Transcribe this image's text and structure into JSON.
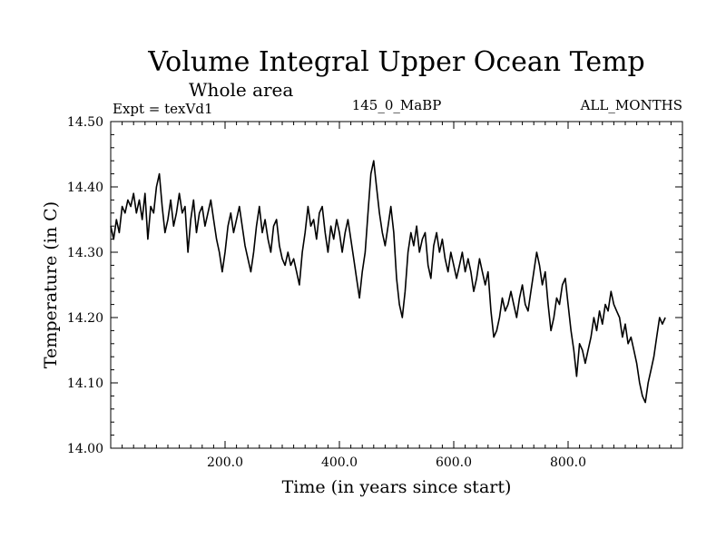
{
  "chart_data": {
    "type": "line",
    "title": "Volume Integral Upper Ocean Temp",
    "subtitle": "Whole area",
    "experiment": "Expt = texVd1",
    "run_label": "145_0_MaBP",
    "months_label": "ALL_MONTHS",
    "xlabel": "Time (in years since start)",
    "ylabel": "Temperature (in C)",
    "xlim": [
      0,
      1000
    ],
    "ylim": [
      14.0,
      14.5
    ],
    "xticks": [
      {
        "value": 200,
        "label": "200.0"
      },
      {
        "value": 400,
        "label": "400.0"
      },
      {
        "value": 600,
        "label": "600.0"
      },
      {
        "value": 800,
        "label": "800.0"
      }
    ],
    "yticks": [
      {
        "value": 14.0,
        "label": "14.00"
      },
      {
        "value": 14.1,
        "label": "14.10"
      },
      {
        "value": 14.2,
        "label": "14.20"
      },
      {
        "value": 14.3,
        "label": "14.30"
      },
      {
        "value": 14.4,
        "label": "14.40"
      },
      {
        "value": 14.5,
        "label": "14.50"
      }
    ],
    "grid": false,
    "series": [
      {
        "name": "Volume Integral Upper Ocean Temp",
        "color": "#000000",
        "points": [
          [
            0,
            14.34
          ],
          [
            5,
            14.32
          ],
          [
            10,
            14.35
          ],
          [
            15,
            14.33
          ],
          [
            20,
            14.37
          ],
          [
            25,
            14.36
          ],
          [
            30,
            14.38
          ],
          [
            35,
            14.37
          ],
          [
            40,
            14.39
          ],
          [
            45,
            14.36
          ],
          [
            50,
            14.38
          ],
          [
            55,
            14.35
          ],
          [
            60,
            14.39
          ],
          [
            65,
            14.32
          ],
          [
            70,
            14.37
          ],
          [
            75,
            14.36
          ],
          [
            80,
            14.4
          ],
          [
            85,
            14.42
          ],
          [
            90,
            14.37
          ],
          [
            95,
            14.33
          ],
          [
            100,
            14.35
          ],
          [
            105,
            14.38
          ],
          [
            110,
            14.34
          ],
          [
            115,
            14.36
          ],
          [
            120,
            14.39
          ],
          [
            125,
            14.36
          ],
          [
            130,
            14.37
          ],
          [
            135,
            14.3
          ],
          [
            140,
            14.35
          ],
          [
            145,
            14.38
          ],
          [
            150,
            14.33
          ],
          [
            155,
            14.36
          ],
          [
            160,
            14.37
          ],
          [
            165,
            14.34
          ],
          [
            170,
            14.36
          ],
          [
            175,
            14.38
          ],
          [
            180,
            14.35
          ],
          [
            185,
            14.32
          ],
          [
            190,
            14.3
          ],
          [
            195,
            14.27
          ],
          [
            200,
            14.3
          ],
          [
            205,
            14.34
          ],
          [
            210,
            14.36
          ],
          [
            215,
            14.33
          ],
          [
            220,
            14.35
          ],
          [
            225,
            14.37
          ],
          [
            230,
            14.34
          ],
          [
            235,
            14.31
          ],
          [
            240,
            14.29
          ],
          [
            245,
            14.27
          ],
          [
            250,
            14.3
          ],
          [
            255,
            14.34
          ],
          [
            260,
            14.37
          ],
          [
            265,
            14.33
          ],
          [
            270,
            14.35
          ],
          [
            275,
            14.32
          ],
          [
            280,
            14.3
          ],
          [
            285,
            14.34
          ],
          [
            290,
            14.35
          ],
          [
            295,
            14.31
          ],
          [
            300,
            14.29
          ],
          [
            305,
            14.28
          ],
          [
            310,
            14.3
          ],
          [
            315,
            14.28
          ],
          [
            320,
            14.29
          ],
          [
            325,
            14.27
          ],
          [
            330,
            14.25
          ],
          [
            335,
            14.3
          ],
          [
            340,
            14.33
          ],
          [
            345,
            14.37
          ],
          [
            350,
            14.34
          ],
          [
            355,
            14.35
          ],
          [
            360,
            14.32
          ],
          [
            365,
            14.36
          ],
          [
            370,
            14.37
          ],
          [
            375,
            14.33
          ],
          [
            380,
            14.3
          ],
          [
            385,
            14.34
          ],
          [
            390,
            14.32
          ],
          [
            395,
            14.35
          ],
          [
            400,
            14.33
          ],
          [
            405,
            14.3
          ],
          [
            410,
            14.33
          ],
          [
            415,
            14.35
          ],
          [
            420,
            14.32
          ],
          [
            425,
            14.29
          ],
          [
            430,
            14.26
          ],
          [
            435,
            14.23
          ],
          [
            440,
            14.27
          ],
          [
            445,
            14.3
          ],
          [
            450,
            14.36
          ],
          [
            455,
            14.42
          ],
          [
            460,
            14.44
          ],
          [
            465,
            14.4
          ],
          [
            470,
            14.36
          ],
          [
            475,
            14.33
          ],
          [
            480,
            14.31
          ],
          [
            485,
            14.34
          ],
          [
            490,
            14.37
          ],
          [
            495,
            14.33
          ],
          [
            500,
            14.26
          ],
          [
            505,
            14.22
          ],
          [
            510,
            14.2
          ],
          [
            515,
            14.24
          ],
          [
            520,
            14.3
          ],
          [
            525,
            14.33
          ],
          [
            530,
            14.31
          ],
          [
            535,
            14.34
          ],
          [
            540,
            14.3
          ],
          [
            545,
            14.32
          ],
          [
            550,
            14.33
          ],
          [
            555,
            14.28
          ],
          [
            560,
            14.26
          ],
          [
            565,
            14.31
          ],
          [
            570,
            14.33
          ],
          [
            575,
            14.3
          ],
          [
            580,
            14.32
          ],
          [
            585,
            14.29
          ],
          [
            590,
            14.27
          ],
          [
            595,
            14.3
          ],
          [
            600,
            14.28
          ],
          [
            605,
            14.26
          ],
          [
            610,
            14.28
          ],
          [
            615,
            14.3
          ],
          [
            620,
            14.27
          ],
          [
            625,
            14.29
          ],
          [
            630,
            14.27
          ],
          [
            635,
            14.24
          ],
          [
            640,
            14.26
          ],
          [
            645,
            14.29
          ],
          [
            650,
            14.27
          ],
          [
            655,
            14.25
          ],
          [
            660,
            14.27
          ],
          [
            665,
            14.21
          ],
          [
            670,
            14.17
          ],
          [
            675,
            14.18
          ],
          [
            680,
            14.2
          ],
          [
            685,
            14.23
          ],
          [
            690,
            14.21
          ],
          [
            695,
            14.22
          ],
          [
            700,
            14.24
          ],
          [
            705,
            14.22
          ],
          [
            710,
            14.2
          ],
          [
            715,
            14.23
          ],
          [
            720,
            14.25
          ],
          [
            725,
            14.22
          ],
          [
            730,
            14.21
          ],
          [
            735,
            14.24
          ],
          [
            740,
            14.27
          ],
          [
            745,
            14.3
          ],
          [
            750,
            14.28
          ],
          [
            755,
            14.25
          ],
          [
            760,
            14.27
          ],
          [
            765,
            14.22
          ],
          [
            770,
            14.18
          ],
          [
            775,
            14.2
          ],
          [
            780,
            14.23
          ],
          [
            785,
            14.22
          ],
          [
            790,
            14.25
          ],
          [
            795,
            14.26
          ],
          [
            800,
            14.22
          ],
          [
            805,
            14.18
          ],
          [
            810,
            14.15
          ],
          [
            815,
            14.11
          ],
          [
            820,
            14.16
          ],
          [
            825,
            14.15
          ],
          [
            830,
            14.13
          ],
          [
            835,
            14.15
          ],
          [
            840,
            14.17
          ],
          [
            845,
            14.2
          ],
          [
            850,
            14.18
          ],
          [
            855,
            14.21
          ],
          [
            860,
            14.19
          ],
          [
            865,
            14.22
          ],
          [
            870,
            14.21
          ],
          [
            875,
            14.24
          ],
          [
            880,
            14.22
          ],
          [
            885,
            14.21
          ],
          [
            890,
            14.2
          ],
          [
            895,
            14.17
          ],
          [
            900,
            14.19
          ],
          [
            905,
            14.16
          ],
          [
            910,
            14.17
          ],
          [
            915,
            14.15
          ],
          [
            920,
            14.13
          ],
          [
            925,
            14.1
          ],
          [
            930,
            14.08
          ],
          [
            935,
            14.07
          ],
          [
            940,
            14.1
          ],
          [
            945,
            14.12
          ],
          [
            950,
            14.14
          ],
          [
            955,
            14.17
          ],
          [
            960,
            14.2
          ],
          [
            965,
            14.19
          ],
          [
            970,
            14.2
          ]
        ]
      }
    ]
  }
}
